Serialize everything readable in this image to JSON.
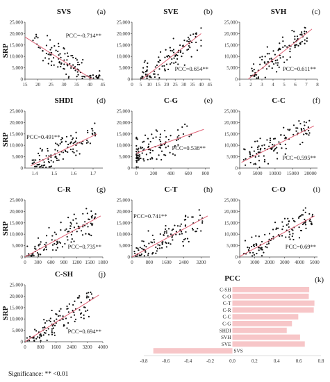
{
  "figure": {
    "note": "Significance: ** <0.01",
    "colors": {
      "points": "#111111",
      "fit_line": "#e06377",
      "bars": "#f7c6c8",
      "axis": "#444444"
    }
  },
  "chart_data": [
    {
      "type": "scatter",
      "title": "SVS",
      "panel": "(a)",
      "ylabel": "SRP",
      "xlabel": "",
      "xlim": [
        15,
        45
      ],
      "ylim": [
        0,
        25000
      ],
      "xticks": [
        "15",
        "20",
        "25",
        "30",
        "35",
        "40",
        "45"
      ],
      "yticks": [
        "0",
        "5,000",
        "10,000",
        "15,000",
        "20,000",
        "25,000"
      ],
      "annotation": "PCC=-0.714**",
      "annotation_pos": "top-right",
      "fit": {
        "x": [
          15,
          43
        ],
        "y": [
          18500,
          -1500
        ]
      },
      "points": {
        "x_range": [
          18,
          44
        ],
        "trend": "negative",
        "n": 110,
        "seed": 11
      }
    },
    {
      "type": "scatter",
      "title": "SVE",
      "panel": "(b)",
      "ylabel": "",
      "xlabel": "",
      "xlim": [
        0,
        45
      ],
      "ylim": [
        0,
        25000
      ],
      "xticks": [
        "0",
        "5",
        "10",
        "15",
        "20",
        "25",
        "30",
        "35",
        "40",
        "45"
      ],
      "yticks": [
        "0",
        "5,000",
        "10,000",
        "15,000",
        "20,000",
        "25,000"
      ],
      "annotation": "PCC=0.654**",
      "annotation_pos": "bottom-right",
      "fit": {
        "x": [
          5,
          40
        ],
        "y": [
          -500,
          20000
        ]
      },
      "points": {
        "x_range": [
          5,
          40
        ],
        "trend": "positive",
        "n": 110,
        "seed": 23
      }
    },
    {
      "type": "scatter",
      "title": "SVH",
      "panel": "(c)",
      "ylabel": "",
      "xlabel": "",
      "xlim": [
        1,
        8
      ],
      "ylim": [
        0,
        25000
      ],
      "xticks": [
        "1",
        "2",
        "3",
        "4",
        "5",
        "6",
        "7",
        "8"
      ],
      "yticks": [
        "0",
        "5,000",
        "10,000",
        "15,000",
        "20,000",
        "25,000"
      ],
      "annotation": "PCC=0.611**",
      "annotation_pos": "bottom-right",
      "fit": {
        "x": [
          1.5,
          7.5
        ],
        "y": [
          -1000,
          22000
        ]
      },
      "points": {
        "x_range": [
          2,
          7.2
        ],
        "trend": "positive",
        "n": 110,
        "seed": 37
      }
    },
    {
      "type": "scatter",
      "title": "SHDI",
      "panel": "(d)",
      "ylabel": "SRP",
      "xlabel": "",
      "xlim": [
        1.35,
        1.75
      ],
      "ylim": [
        0,
        25000
      ],
      "xticks": [
        "1.4",
        "1.5",
        "1.6",
        "1.7"
      ],
      "yticks": [
        "0",
        "5,000",
        "10,000",
        "15,000",
        "20,000",
        "25,000"
      ],
      "annotation": "PCC=0.491**",
      "annotation_pos": "mid-left",
      "fit": {
        "x": [
          1.38,
          1.72
        ],
        "y": [
          1000,
          15000
        ]
      },
      "points": {
        "x_range": [
          1.38,
          1.72
        ],
        "trend": "positive",
        "n": 110,
        "seed": 41
      }
    },
    {
      "type": "scatter",
      "title": "C-G",
      "panel": "(e)",
      "ylabel": "",
      "xlabel": "",
      "xlim": [
        -50,
        850
      ],
      "ylim": [
        0,
        25000
      ],
      "xticks": [
        "0",
        "200",
        "400",
        "600",
        "800"
      ],
      "yticks": [
        "0",
        "5,000",
        "10,000",
        "15,000",
        "20,000",
        "25,000"
      ],
      "annotation": "PCC=0.538**",
      "annotation_pos": "mid-right",
      "fit": {
        "x": [
          0,
          780
        ],
        "y": [
          6500,
          17000
        ]
      },
      "points": {
        "x_range": [
          0,
          650
        ],
        "trend": "clustered",
        "n": 110,
        "seed": 53
      }
    },
    {
      "type": "scatter",
      "title": "C-C",
      "panel": "(f)",
      "ylabel": "",
      "xlabel": "",
      "xlim": [
        0,
        22000
      ],
      "ylim": [
        0,
        25000
      ],
      "xticks": [
        "0",
        "5000",
        "10000",
        "15000",
        "20000"
      ],
      "yticks": [
        "0",
        "5,000",
        "10,000",
        "15,000",
        "20,000",
        "25,000"
      ],
      "annotation": "PCC=0.595**",
      "annotation_pos": "bottom-right",
      "fit": {
        "x": [
          500,
          21000
        ],
        "y": [
          2500,
          18500
        ]
      },
      "points": {
        "x_range": [
          1000,
          20000
        ],
        "trend": "positive",
        "n": 110,
        "seed": 61
      }
    },
    {
      "type": "scatter",
      "title": "C-R",
      "panel": "(g)",
      "ylabel": "SRP",
      "xlabel": "",
      "xlim": [
        0,
        1800
      ],
      "ylim": [
        0,
        25000
      ],
      "xticks": [
        "0",
        "300",
        "600",
        "900",
        "1200",
        "1500",
        "1800"
      ],
      "yticks": [
        "0",
        "5,000",
        "10,000",
        "15,000",
        "20,000",
        "25,000"
      ],
      "annotation": "PCC=0.735**",
      "annotation_pos": "bottom-right",
      "fit": {
        "x": [
          0,
          1750
        ],
        "y": [
          0,
          18000
        ]
      },
      "points": {
        "x_range": [
          30,
          1650
        ],
        "trend": "positive",
        "n": 110,
        "seed": 71
      }
    },
    {
      "type": "scatter",
      "title": "C-T",
      "panel": "(h)",
      "ylabel": "",
      "xlabel": "",
      "xlim": [
        0,
        3600
      ],
      "ylim": [
        0,
        25000
      ],
      "xticks": [
        "0",
        "800",
        "1600",
        "2400",
        "3200"
      ],
      "yticks": [
        "0",
        "5,000",
        "10,000",
        "15,000",
        "20,000",
        "25,000"
      ],
      "annotation": "PCC=0.741**",
      "annotation_pos": "top-left",
      "fit": {
        "x": [
          0,
          3500
        ],
        "y": [
          0,
          18000
        ]
      },
      "points": {
        "x_range": [
          100,
          3300
        ],
        "trend": "positive",
        "n": 110,
        "seed": 83
      }
    },
    {
      "type": "scatter",
      "title": "C-O",
      "panel": "(i)",
      "ylabel": "",
      "xlabel": "",
      "xlim": [
        0,
        5200
      ],
      "ylim": [
        0,
        25000
      ],
      "xticks": [
        "0",
        "1000",
        "2000",
        "3000",
        "4000",
        "5000"
      ],
      "yticks": [
        "0",
        "5,000",
        "10,000",
        "15,000",
        "20,000",
        "25,000"
      ],
      "annotation": "PCC=0.69**",
      "annotation_pos": "bottom-right",
      "fit": {
        "x": [
          0,
          5000
        ],
        "y": [
          200,
          18000
        ]
      },
      "points": {
        "x_range": [
          200,
          4900
        ],
        "trend": "positive",
        "n": 110,
        "seed": 97
      }
    },
    {
      "type": "scatter",
      "title": "C-SH",
      "panel": "(j)",
      "ylabel": "SRP",
      "xlabel": "",
      "xlim": [
        0,
        4000
      ],
      "ylim": [
        0,
        25000
      ],
      "xticks": [
        "0",
        "800",
        "1600",
        "2400",
        "3200",
        "4000"
      ],
      "yticks": [
        "0",
        "5,000",
        "10,000",
        "15,000",
        "20,000",
        "25,000"
      ],
      "annotation": "PCC=0.694**",
      "annotation_pos": "bottom-right",
      "fit": {
        "x": [
          0,
          3800
        ],
        "y": [
          0,
          20500
        ]
      },
      "points": {
        "x_range": [
          100,
          3500
        ],
        "trend": "positive",
        "n": 110,
        "seed": 101
      }
    },
    {
      "type": "bar",
      "orientation": "horizontal",
      "title": "PCC",
      "panel": "(k)",
      "categories": [
        "C-SH",
        "C-O",
        "C-T",
        "C-R",
        "C-C",
        "C-G",
        "SHDI",
        "SVH",
        "SVE",
        "SVS"
      ],
      "values": [
        0.694,
        0.69,
        0.741,
        0.735,
        0.595,
        0.538,
        0.491,
        0.611,
        0.654,
        -0.714
      ],
      "xlim": [
        -0.8,
        0.8
      ],
      "xticks": [
        "-0.8",
        "-0.6",
        "-0.4",
        "-0.2",
        "0.0",
        "0.2",
        "0.4",
        "0.6",
        "0.8"
      ]
    }
  ]
}
